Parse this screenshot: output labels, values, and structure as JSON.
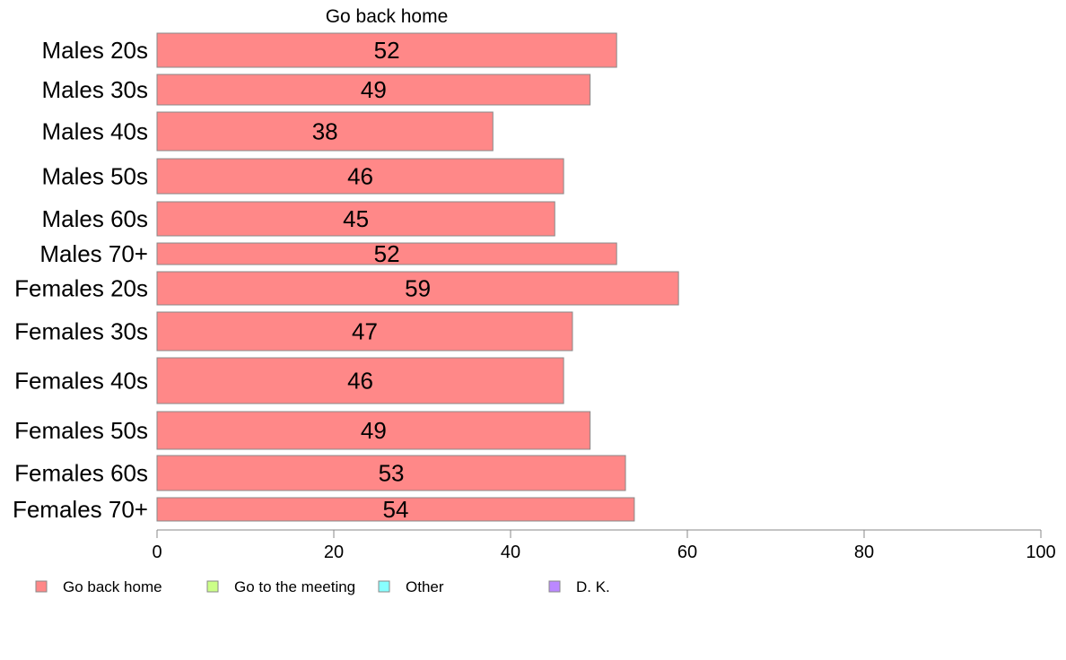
{
  "chart_data": {
    "type": "bar",
    "orientation": "horizontal",
    "title": "Go back home",
    "categories": [
      "Males 20s",
      "Males 30s",
      "Males 40s",
      "Males 50s",
      "Males 60s",
      "Males 70+",
      "Females 20s",
      "Females 30s",
      "Females 40s",
      "Females 50s",
      "Females 60s",
      "Females 70+"
    ],
    "series": [
      {
        "name": "Go back home",
        "color": "#ff8888",
        "values": [
          52,
          49,
          38,
          46,
          45,
          52,
          59,
          47,
          46,
          49,
          53,
          54
        ]
      }
    ],
    "xlim": [
      0,
      100
    ],
    "xticks": [
      "0",
      "20",
      "40",
      "60",
      "80",
      "100"
    ],
    "grid": false,
    "legend_position": "bottom-left",
    "legend": [
      {
        "label": "Go back home",
        "color": "#ff8888"
      },
      {
        "label": "Go to the meeting",
        "color": "#ccff88"
      },
      {
        "label": "Other",
        "color": "#88ffff"
      },
      {
        "label": "D. K.",
        "color": "#bb88ff"
      }
    ]
  }
}
